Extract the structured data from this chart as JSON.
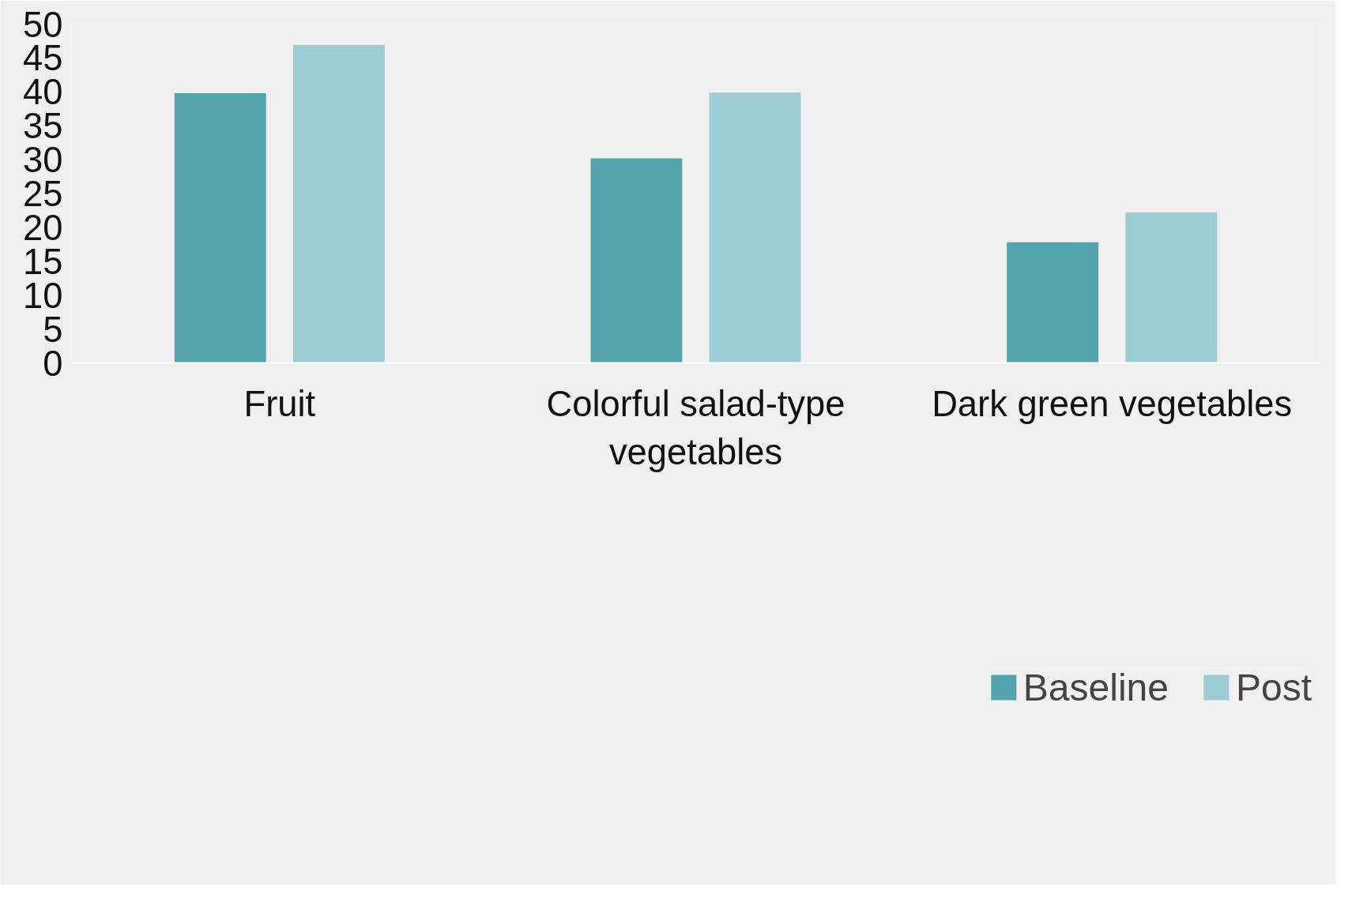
{
  "chart_data": {
    "type": "bar",
    "categories": [
      "Fruit",
      "Colorful salad-type vegetables",
      "Dark green vegetables"
    ],
    "series": [
      {
        "name": "Baseline",
        "color": "#53a5ad",
        "values": [
          39.8,
          30.2,
          17.8
        ]
      },
      {
        "name": "Post",
        "color": "#9dcdd4",
        "values": [
          46.9,
          39.9,
          22.2
        ]
      }
    ],
    "ylim": [
      0,
      50
    ],
    "yticks": [
      0,
      5,
      10,
      15,
      20,
      25,
      30,
      35,
      40,
      45,
      50
    ],
    "grid": false,
    "legend": "bottom"
  }
}
